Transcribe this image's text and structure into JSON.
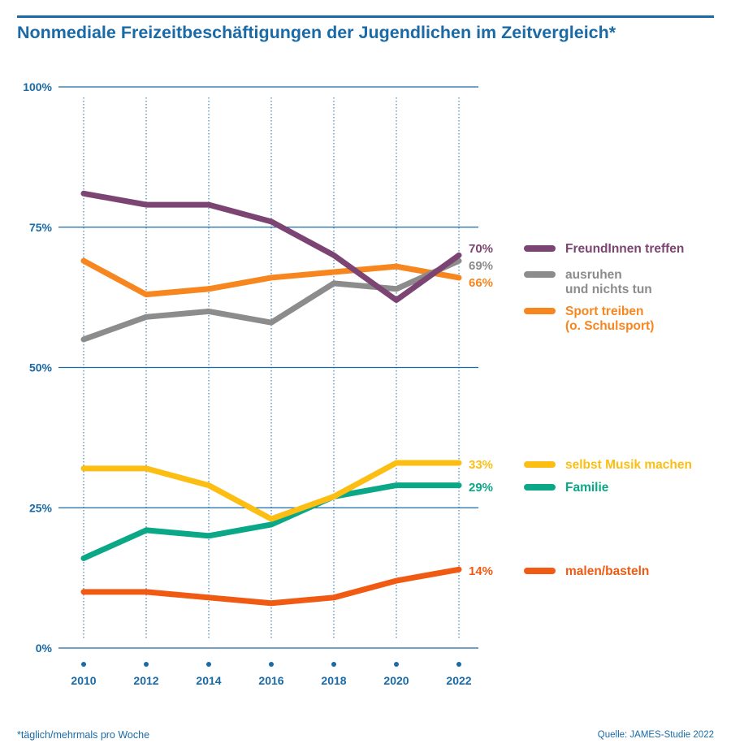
{
  "title": "Nonmediale Freizeitbeschäftigungen der Jugendlichen im Zeitvergleich*",
  "footnote": "*täglich/mehrmals pro Woche",
  "source": "Quelle: JAMES-Studie 2022",
  "colors": {
    "accent": "#1a6aa6",
    "freunde": "#7c4472",
    "ausruhen": "#8c8c8c",
    "sport": "#f7861f",
    "musik": "#fdbe13",
    "familie": "#0aa886",
    "malen": "#f05a12"
  },
  "chart_data": {
    "type": "line",
    "x": [
      "2010",
      "2012",
      "2014",
      "2016",
      "2018",
      "2020",
      "2022"
    ],
    "ylim": [
      0,
      100
    ],
    "yticks": [
      0,
      25,
      50,
      75,
      100
    ],
    "ytick_labels": [
      "0%",
      "25%",
      "50%",
      "75%",
      "100%"
    ],
    "grid": true,
    "legend_position": "right",
    "series": [
      {
        "name": "FreundInnen treffen",
        "color": "#7c4472",
        "values": [
          81,
          79,
          79,
          76,
          70,
          62,
          70
        ],
        "end_label": "70%"
      },
      {
        "name": "ausruhen\nund nichts tun",
        "color": "#8c8c8c",
        "values": [
          55,
          59,
          60,
          58,
          65,
          64,
          69
        ],
        "end_label": "69%"
      },
      {
        "name": "Sport treiben\n(o. Schulsport)",
        "color": "#f7861f",
        "values": [
          69,
          63,
          64,
          66,
          67,
          68,
          66
        ],
        "end_label": "66%"
      },
      {
        "name": "selbst Musik machen",
        "color": "#fdbe13",
        "values": [
          32,
          32,
          29,
          23,
          27,
          33,
          33
        ],
        "end_label": "33%"
      },
      {
        "name": "Familie",
        "color": "#0aa886",
        "values": [
          16,
          21,
          20,
          22,
          27,
          29,
          29
        ],
        "end_label": "29%"
      },
      {
        "name": "malen/basteln",
        "color": "#f05a12",
        "values": [
          10,
          10,
          9,
          8,
          9,
          12,
          14
        ],
        "end_label": "14%"
      }
    ]
  }
}
